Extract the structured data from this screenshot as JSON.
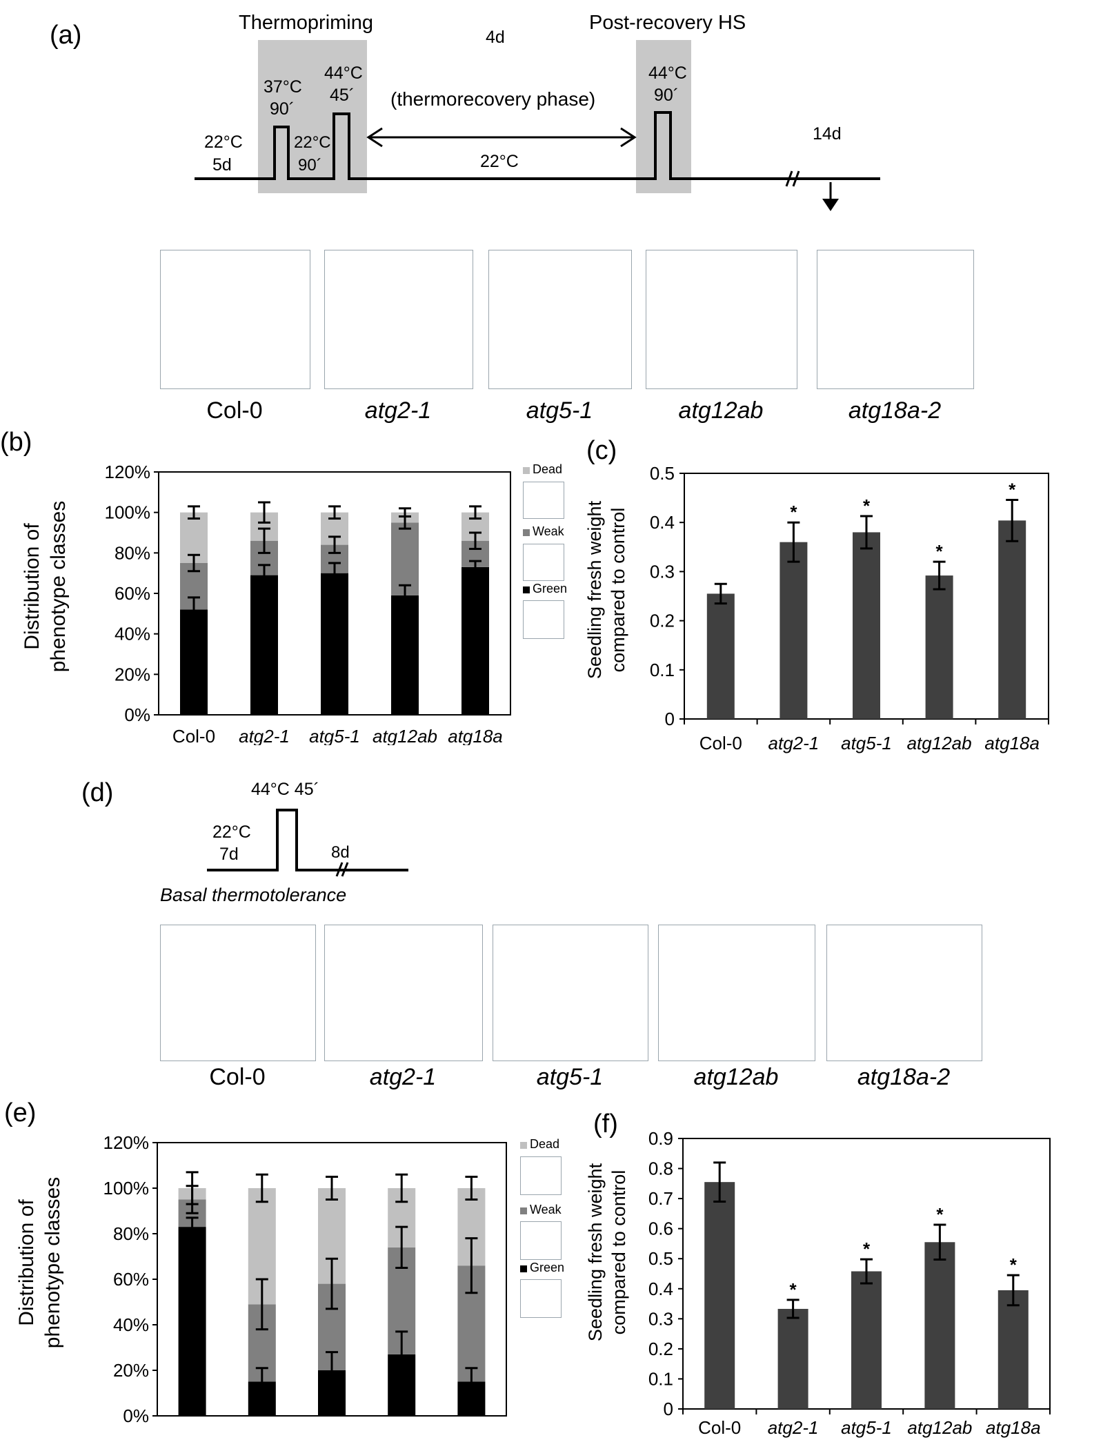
{
  "panel_labels": {
    "a": "(a)",
    "b": "(b)",
    "c": "(c)",
    "d": "(d)",
    "e": "(e)",
    "f": "(f)"
  },
  "panel_a": {
    "thermopriming": "Thermopriming",
    "post_recovery": "Post-recovery HS",
    "four_d": "4d",
    "step37": "37°C",
    "step37_time": "90´",
    "step44": "44°C",
    "step44_time": "45´",
    "step22_mid": "22°C",
    "step22_mid_time": "90´",
    "recovery_phase": "(thermorecovery phase)",
    "start_temp": "22°C",
    "start_time": "5d",
    "base_temp": "22°C",
    "hs_temp": "44°C",
    "hs_time": "90´",
    "fourteen_d": "14d"
  },
  "panel_d": {
    "hs_label": "44°C 45´",
    "start_temp": "22°C",
    "start_time": "7d",
    "end_time": "8d",
    "caption": "Basal thermotolerance"
  },
  "genotypes_photo": [
    "Col-0",
    "atg2-1",
    "atg5-1",
    "atg12ab",
    "atg18a-2"
  ],
  "colors": {
    "green": "#000000",
    "weak": "#808080",
    "dead": "#c0c0c0",
    "bar_c": "#404040"
  },
  "legend": {
    "dead": "Dead",
    "weak": "Weak",
    "green": "Green"
  },
  "chart_data": [
    {
      "id": "b",
      "type": "bar",
      "stacked": true,
      "ylabel": "Distribution of phenotype classes",
      "ylim": [
        0,
        120
      ],
      "yticks": [
        "0%",
        "20%",
        "40%",
        "60%",
        "80%",
        "100%",
        "120%"
      ],
      "categories": [
        "Col-0",
        "atg2-1",
        "atg5-1",
        "atg12ab",
        "atg18a"
      ],
      "series": [
        {
          "name": "Green",
          "values": [
            52,
            69,
            70,
            59,
            73
          ],
          "err": [
            6,
            5,
            5,
            5,
            3
          ]
        },
        {
          "name": "Weak",
          "values": [
            23,
            17,
            14,
            36,
            13
          ],
          "err": [
            4,
            6,
            4,
            3,
            4
          ]
        },
        {
          "name": "Dead",
          "values": [
            25,
            14,
            16,
            5,
            14
          ],
          "err": [
            3,
            5,
            3,
            2,
            3
          ]
        }
      ]
    },
    {
      "id": "c",
      "type": "bar",
      "ylabel": "Seedling fresh weight compared to control",
      "ylim": [
        0,
        0.5
      ],
      "yticks": [
        "0",
        "0.1",
        "0.2",
        "0.3",
        "0.4",
        "0.5"
      ],
      "categories": [
        "Col-0",
        "atg2-1",
        "atg5-1",
        "atg12ab",
        "atg18a"
      ],
      "values": [
        0.255,
        0.36,
        0.38,
        0.292,
        0.404
      ],
      "err": [
        0.02,
        0.04,
        0.033,
        0.028,
        0.042
      ],
      "significant": [
        false,
        true,
        true,
        true,
        true
      ],
      "marker": "*"
    },
    {
      "id": "e",
      "type": "bar",
      "stacked": true,
      "ylabel": "Distribution of phenotype classes",
      "ylim": [
        0,
        120
      ],
      "yticks": [
        "0%",
        "20%",
        "40%",
        "60%",
        "80%",
        "100%",
        "120%"
      ],
      "categories": [
        "Col-0",
        "atg2-1",
        "atg5-1",
        "atg12ab",
        "atg18a"
      ],
      "series": [
        {
          "name": "Green",
          "values": [
            83,
            15,
            20,
            27,
            15
          ],
          "err": [
            4,
            6,
            8,
            10,
            6
          ]
        },
        {
          "name": "Weak",
          "values": [
            12,
            34,
            38,
            47,
            51
          ],
          "err": [
            6,
            11,
            11,
            9,
            12
          ]
        },
        {
          "name": "Dead",
          "values": [
            5,
            51,
            42,
            26,
            34
          ],
          "err": [
            7,
            6,
            5,
            6,
            5
          ]
        }
      ]
    },
    {
      "id": "f",
      "type": "bar",
      "ylabel": "Seedling fresh weight compared to control",
      "ylim": [
        0,
        0.9
      ],
      "yticks": [
        "0",
        "0.1",
        "0.2",
        "0.3",
        "0.4",
        "0.5",
        "0.6",
        "0.7",
        "0.8",
        "0.9"
      ],
      "categories": [
        "Col-0",
        "atg2-1",
        "atg5-1",
        "atg12ab",
        "atg18a"
      ],
      "values": [
        0.755,
        0.333,
        0.458,
        0.555,
        0.395
      ],
      "err": [
        0.065,
        0.03,
        0.04,
        0.058,
        0.05
      ],
      "significant": [
        false,
        true,
        true,
        true,
        true
      ],
      "marker": "*"
    }
  ]
}
